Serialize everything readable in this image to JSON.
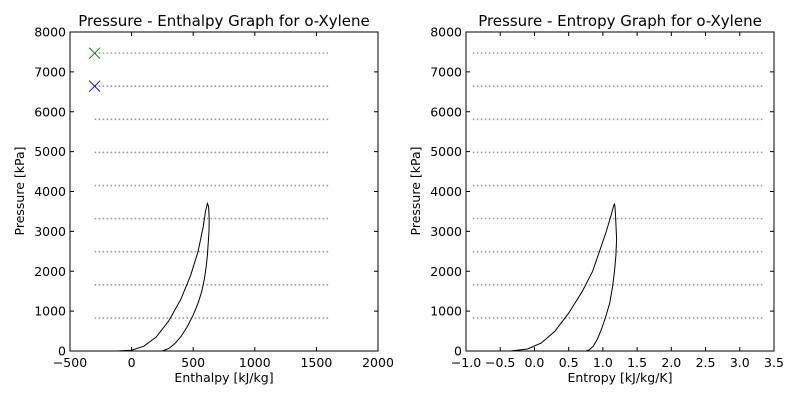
{
  "chart_data": [
    {
      "type": "line",
      "title": "Pressure - Enthalpy Graph for o-Xylene",
      "xlabel": "Enthalpy [kJ/kg]",
      "ylabel": "Pressure [kPa]",
      "xlim": [
        -500,
        2000
      ],
      "ylim": [
        0,
        8000
      ],
      "xticks": [
        -500,
        0,
        500,
        1000,
        1500,
        2000
      ],
      "xtick_labels": [
        "−500",
        "0",
        "500",
        "1000",
        "1500",
        "2000"
      ],
      "yticks": [
        0,
        1000,
        2000,
        3000,
        4000,
        5000,
        6000,
        7000,
        8000
      ],
      "ytick_labels": [
        "0",
        "1000",
        "2000",
        "3000",
        "4000",
        "5000",
        "6000",
        "7000",
        "8000"
      ],
      "grid": false,
      "saturation_dome": {
        "color": "#000000",
        "x": [
          -120,
          0,
          100,
          200,
          300,
          400,
          480,
          540,
          580,
          600,
          615,
          625,
          630,
          628,
          622,
          615,
          605,
          590,
          570,
          540,
          500,
          450,
          400,
          350,
          300,
          250
        ],
        "y": [
          0,
          20,
          120,
          350,
          750,
          1300,
          1900,
          2500,
          3100,
          3500,
          3700,
          3620,
          3300,
          3000,
          2700,
          2400,
          2100,
          1800,
          1500,
          1200,
          900,
          600,
          360,
          180,
          60,
          0
        ]
      },
      "isobars": {
        "color": "#999999",
        "style": "dotted",
        "x_range": [
          -300,
          1600
        ],
        "values": [
          830,
          1660,
          2490,
          3320,
          4150,
          4980,
          5810,
          6640,
          7470
        ]
      },
      "markers": [
        {
          "x": -300,
          "y": 6640,
          "marker": "x",
          "color": "#0000ff"
        },
        {
          "x": -300,
          "y": 7470,
          "marker": "x",
          "color": "#008000"
        }
      ]
    },
    {
      "type": "line",
      "title": "Pressure - Entropy Graph for o-Xylene",
      "xlabel": "Entropy [kJ/kg/K]",
      "ylabel": "Pressure [kPa]",
      "xlim": [
        -1.0,
        3.5
      ],
      "ylim": [
        0,
        8000
      ],
      "xticks": [
        -1.0,
        -0.5,
        0.0,
        0.5,
        1.0,
        1.5,
        2.0,
        2.5,
        3.0,
        3.5
      ],
      "xtick_labels": [
        "−1.0",
        "−0.5",
        "0.0",
        "0.5",
        "1.0",
        "1.5",
        "2.0",
        "2.5",
        "3.0",
        "3.5"
      ],
      "yticks": [
        0,
        1000,
        2000,
        3000,
        4000,
        5000,
        6000,
        7000,
        8000
      ],
      "ytick_labels": [
        "0",
        "1000",
        "2000",
        "3000",
        "4000",
        "5000",
        "6000",
        "7000",
        "8000"
      ],
      "grid": false,
      "saturation_dome": {
        "color": "#000000",
        "x": [
          -0.35,
          -0.1,
          0.1,
          0.3,
          0.5,
          0.7,
          0.85,
          0.95,
          1.05,
          1.12,
          1.15,
          1.17,
          1.18,
          1.19,
          1.2,
          1.19,
          1.17,
          1.14,
          1.1,
          1.04,
          0.98,
          0.92,
          0.86,
          0.8,
          0.75
        ],
        "y": [
          0,
          50,
          200,
          500,
          950,
          1500,
          2000,
          2500,
          3000,
          3400,
          3600,
          3700,
          3550,
          3200,
          2800,
          2400,
          2000,
          1600,
          1200,
          850,
          550,
          300,
          120,
          30,
          0
        ]
      },
      "isobars": {
        "color": "#999999",
        "style": "dotted",
        "x_range": [
          -0.9,
          3.35
        ],
        "values": [
          830,
          1660,
          2490,
          3320,
          4150,
          4980,
          5810,
          6640,
          7470
        ]
      },
      "markers": []
    }
  ]
}
